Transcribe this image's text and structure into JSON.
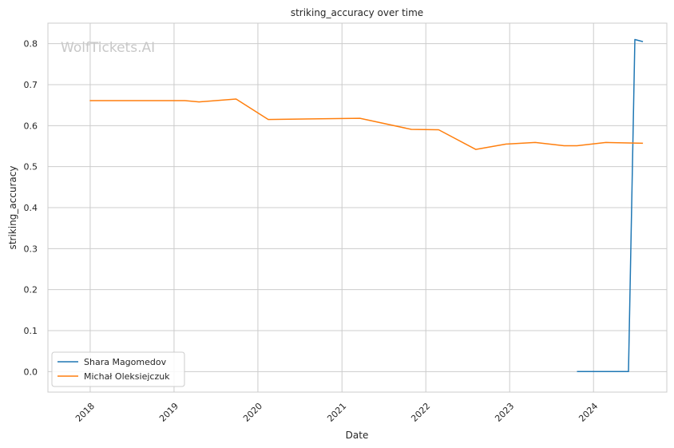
{
  "chart_data": {
    "type": "line",
    "title": "striking_accuracy over time",
    "xlabel": "Date",
    "ylabel": "striking_accuracy",
    "watermark": "WolfTickets.AI",
    "xlim": [
      "2017-07-01",
      "2024-11-15"
    ],
    "ylim": [
      -0.05,
      0.85
    ],
    "x_ticks": [
      "2018",
      "2019",
      "2020",
      "2021",
      "2022",
      "2023",
      "2024"
    ],
    "y_ticks": [
      "0.0",
      "0.1",
      "0.2",
      "0.3",
      "0.4",
      "0.5",
      "0.6",
      "0.7",
      "0.8"
    ],
    "grid": true,
    "legend_position": "lower-left",
    "colors": {
      "Shara Magomedov": "#1f77b4",
      "Michał Oleksiejczuk": "#ff7f0e"
    },
    "series": [
      {
        "name": "Shara Magomedov",
        "x": [
          "2023-10-21",
          "2024-02-24",
          "2024-06-01",
          "2024-06-29",
          "2024-08-03"
        ],
        "y": [
          0.0,
          0.0,
          0.0,
          0.81,
          0.805
        ]
      },
      {
        "name": "Michał Oleksiejczuk",
        "x": [
          "2017-12-30",
          "2019-02-17",
          "2019-04-20",
          "2019-09-28",
          "2020-02-15",
          "2021-03-20",
          "2021-10-30",
          "2022-02-26",
          "2022-08-06",
          "2022-12-17",
          "2023-04-22",
          "2023-08-26",
          "2023-10-21",
          "2024-02-24",
          "2024-08-03"
        ],
        "y": [
          0.661,
          0.661,
          0.658,
          0.665,
          0.615,
          0.618,
          0.591,
          0.59,
          0.542,
          0.555,
          0.559,
          0.551,
          0.551,
          0.559,
          0.557
        ]
      }
    ]
  }
}
